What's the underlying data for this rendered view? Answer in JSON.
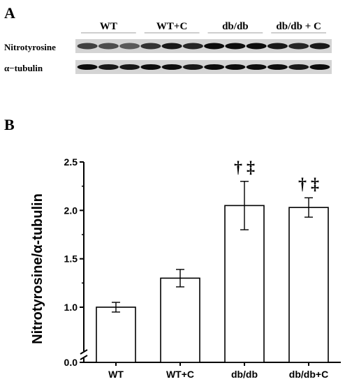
{
  "panel_a": {
    "label": "A",
    "groups": [
      "WT",
      "WT+C",
      "db/db",
      "db/db + C"
    ],
    "rows": [
      "Nitrotyrosine",
      "α−tubulin"
    ],
    "lanes_per_group": 3
  },
  "panel_b": {
    "label": "B"
  },
  "chart_data": {
    "type": "bar",
    "categories": [
      "WT",
      "WT+C",
      "db/db",
      "db/db+C"
    ],
    "values": [
      1.0,
      1.3,
      2.05,
      2.03
    ],
    "errors": [
      0.05,
      0.09,
      0.25,
      0.1
    ],
    "annotations": [
      "",
      "",
      "† ‡",
      "† ‡"
    ],
    "ylabel": "Nitrotyrosine/α-tubulin",
    "yticks": [
      0.0,
      1.0,
      1.5,
      2.0,
      2.5
    ],
    "ytick_labels": [
      "0.0",
      "1.0",
      "1.5",
      "2.0",
      "2.5"
    ],
    "ylim": [
      0.0,
      2.5
    ],
    "axis_break": [
      0.0,
      0.75
    ],
    "bar_fill": "#ffffff",
    "bar_stroke": "#000000"
  }
}
